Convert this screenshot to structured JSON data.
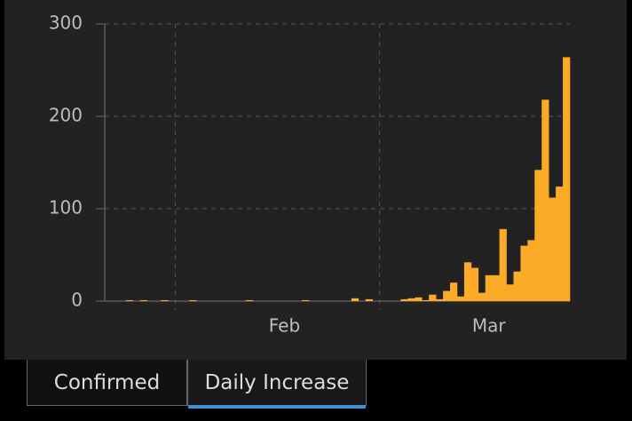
{
  "chart_data": {
    "type": "bar",
    "categories": [
      null,
      null,
      null,
      null,
      null,
      null,
      null,
      null,
      null,
      null,
      null,
      null,
      null,
      null,
      null,
      null,
      null,
      null,
      null,
      null,
      null,
      null,
      null,
      null,
      null,
      "Feb",
      null,
      null,
      null,
      null,
      null,
      null,
      null,
      null,
      null,
      null,
      null,
      null,
      null,
      null,
      null,
      null,
      null,
      null,
      null,
      null,
      null,
      null,
      null,
      null,
      null,
      null,
      null,
      null,
      "Mar",
      null,
      null,
      null,
      null,
      null,
      null,
      null,
      null,
      null,
      null,
      null
    ],
    "values": [
      0,
      0,
      0,
      1,
      0,
      1,
      0,
      0,
      1,
      0,
      0,
      0,
      1,
      0,
      0,
      0,
      0,
      0,
      0,
      0,
      1,
      0,
      0,
      0,
      0,
      0,
      0,
      0,
      1,
      0,
      0,
      0,
      0,
      0,
      0,
      3,
      0,
      2,
      0,
      0,
      0,
      0,
      2,
      3,
      4,
      1,
      7,
      2,
      11,
      20,
      5,
      42,
      36,
      9,
      28,
      28,
      78,
      18,
      32,
      60,
      66,
      142,
      218,
      112,
      124,
      264
    ],
    "color": "#fcab28",
    "ylim": [
      0,
      300
    ],
    "yticks": [
      0,
      100,
      200,
      300
    ],
    "grid": true
  },
  "tabs": [
    "Confirmed",
    "Daily Increase"
  ]
}
